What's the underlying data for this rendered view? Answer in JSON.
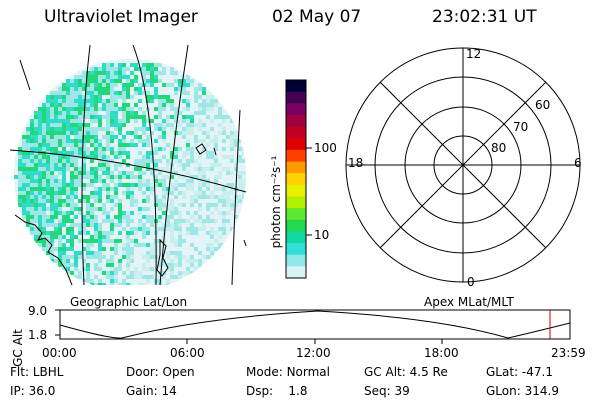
{
  "header": {
    "instrument": "Ultraviolet Imager",
    "date": "02 May 07",
    "time": "23:02:31 UT"
  },
  "geo_panel": {
    "label": "Geographic Lat/Lon"
  },
  "apex_panel": {
    "label": "Apex MLat/MLT",
    "mlt_labels": {
      "top": "12",
      "left": "18",
      "right": "6",
      "bottom": "0"
    },
    "lat_labels": [
      "60",
      "70",
      "80"
    ]
  },
  "colorbar": {
    "unit_label": "photon cm⁻²s⁻¹",
    "ticks": [
      "100",
      "10"
    ],
    "colors": [
      "#000033",
      "#440055",
      "#7a0060",
      "#a00040",
      "#c00020",
      "#e00000",
      "#ff4000",
      "#ff9900",
      "#ffd200",
      "#e8f000",
      "#b0f000",
      "#60e830",
      "#22d850",
      "#10d8a0",
      "#30e0d8",
      "#90e8e8",
      "#d8f4f4"
    ]
  },
  "altitude_plot": {
    "y_axis_label": "GC Alt",
    "y_ticks": [
      "9.0",
      "1.8"
    ],
    "x_ticks": [
      "00:00",
      "06:00",
      "12:00",
      "18:00",
      "23:59"
    ],
    "marker_color": "#cc0000"
  },
  "status": {
    "row1": [
      {
        "label": "Flt:",
        "value": "LBHL"
      },
      {
        "label": "Door:",
        "value": "Open"
      },
      {
        "label": "Mode:",
        "value": "Normal"
      },
      {
        "label": "GC Alt:",
        "value": "4.5 Re"
      },
      {
        "label": "GLat:",
        "value": "-47.1"
      }
    ],
    "row2": [
      {
        "label": "IP:",
        "value": "36.0"
      },
      {
        "label": "Gain:",
        "value": "14"
      },
      {
        "label": "Dsp:",
        "value": "1.8"
      },
      {
        "label": "Seq:",
        "value": "39"
      },
      {
        "label": "GLon:",
        "value": "314.9"
      }
    ]
  }
}
